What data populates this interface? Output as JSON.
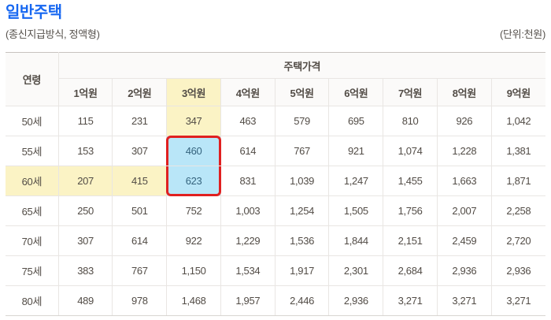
{
  "page": {
    "title": "일반주택",
    "subtitle": "(종신지급방식, 정액형)",
    "unit_label": "(단위:천원)"
  },
  "table": {
    "corner_header": "연령",
    "group_header": "주택가격",
    "price_headers": [
      "1억원",
      "2억원",
      "3억원",
      "4억원",
      "5억원",
      "6억원",
      "7억원",
      "8억원",
      "9억원"
    ],
    "rows": [
      {
        "age": "50세",
        "values": [
          "115",
          "231",
          "347",
          "463",
          "579",
          "695",
          "810",
          "926",
          "1,042"
        ]
      },
      {
        "age": "55세",
        "values": [
          "153",
          "307",
          "460",
          "614",
          "767",
          "921",
          "1,074",
          "1,228",
          "1,381"
        ]
      },
      {
        "age": "60세",
        "values": [
          "207",
          "415",
          "623",
          "831",
          "1,039",
          "1,247",
          "1,455",
          "1,663",
          "1,871"
        ]
      },
      {
        "age": "65세",
        "values": [
          "250",
          "501",
          "752",
          "1,003",
          "1,254",
          "1,505",
          "1,756",
          "2,007",
          "2,258"
        ]
      },
      {
        "age": "70세",
        "values": [
          "307",
          "614",
          "922",
          "1,229",
          "1,536",
          "1,844",
          "2,151",
          "2,459",
          "2,720"
        ]
      },
      {
        "age": "75세",
        "values": [
          "383",
          "767",
          "1,150",
          "1,534",
          "1,917",
          "2,301",
          "2,684",
          "2,936",
          "2,936"
        ]
      },
      {
        "age": "80세",
        "values": [
          "489",
          "978",
          "1,468",
          "1,957",
          "2,446",
          "2,936",
          "3,271",
          "3,271",
          "3,271"
        ]
      }
    ],
    "highlights": {
      "column_index": 2,
      "column_yellow_rows": [
        0
      ],
      "row_index": 2,
      "row_yellow_cols": [
        0,
        1
      ],
      "selected_cells": [
        {
          "row": 1,
          "col": 2,
          "edge": "top"
        },
        {
          "row": 2,
          "col": 2,
          "edge": "bottom"
        }
      ],
      "colors": {
        "title_blue": "#1667f1",
        "yellow": "#fbf3c5",
        "blue": "#b9e6f8",
        "red_border": "#e02020"
      }
    }
  }
}
